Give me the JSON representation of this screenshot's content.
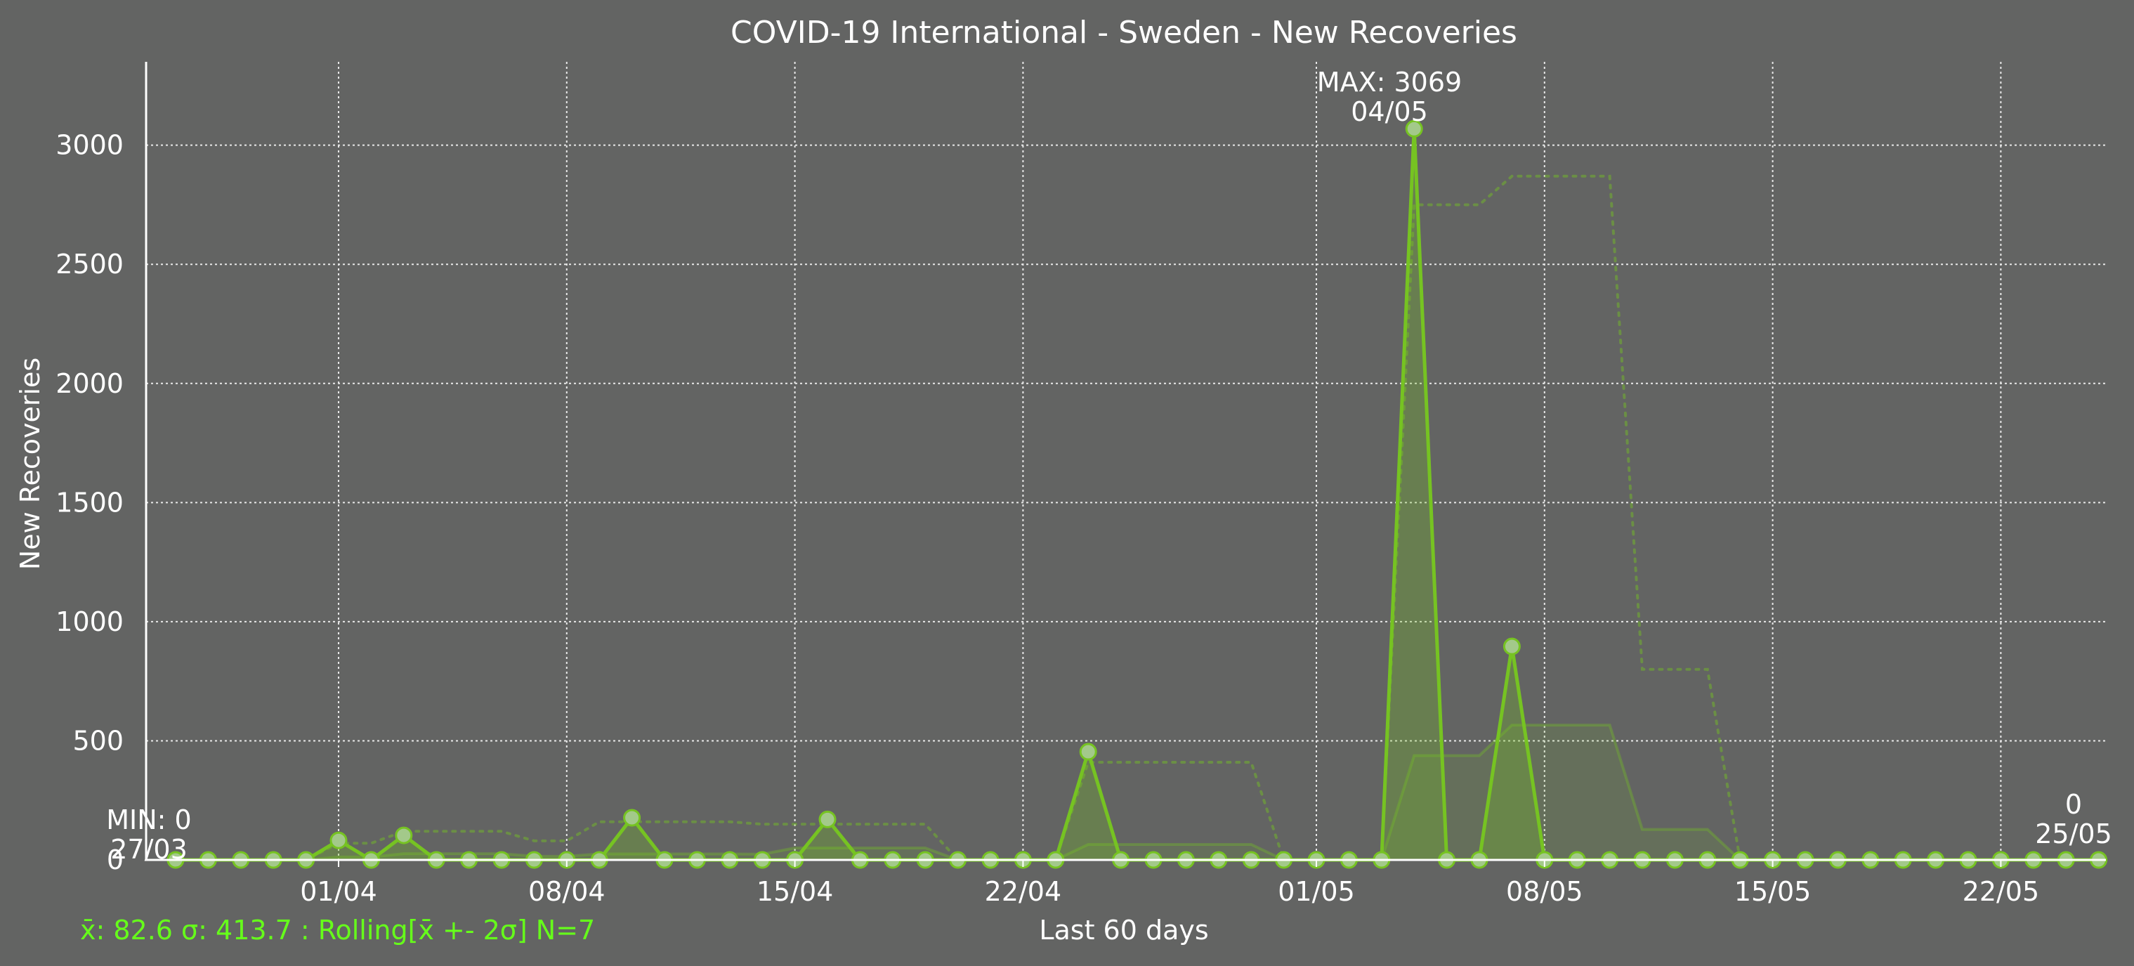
{
  "chart_data": {
    "type": "line",
    "title": "COVID-19 International - Sweden - New Recoveries",
    "xlabel": "Last 60 days",
    "ylabel": "New Recoveries",
    "x": [
      "27/03",
      "28/03",
      "29/03",
      "30/03",
      "31/03",
      "01/04",
      "02/04",
      "03/04",
      "04/04",
      "05/04",
      "06/04",
      "07/04",
      "08/04",
      "09/04",
      "10/04",
      "11/04",
      "12/04",
      "13/04",
      "14/04",
      "15/04",
      "16/04",
      "17/04",
      "18/04",
      "19/04",
      "20/04",
      "21/04",
      "22/04",
      "23/04",
      "24/04",
      "25/04",
      "26/04",
      "27/04",
      "28/04",
      "29/04",
      "30/04",
      "01/05",
      "02/05",
      "03/05",
      "04/05",
      "05/05",
      "06/05",
      "07/05",
      "08/05",
      "09/05",
      "10/05",
      "11/05",
      "12/05",
      "13/05",
      "14/05",
      "15/05",
      "16/05",
      "17/05",
      "18/05",
      "19/05",
      "20/05",
      "21/05",
      "22/05",
      "23/05",
      "24/05",
      "25/05"
    ],
    "xticks": [
      "01/04",
      "08/04",
      "15/04",
      "22/04",
      "01/05",
      "08/05",
      "15/05",
      "22/05"
    ],
    "yticks": [
      0,
      500,
      1000,
      1500,
      2000,
      2500,
      3000
    ],
    "ylim": [
      0,
      3350
    ],
    "grid": true,
    "series": [
      {
        "values": [
          0,
          0,
          0,
          0,
          0,
          82,
          0,
          103,
          0,
          0,
          0,
          0,
          0,
          0,
          177,
          0,
          0,
          0,
          0,
          0,
          170,
          0,
          0,
          0,
          0,
          0,
          0,
          0,
          454,
          0,
          0,
          0,
          0,
          0,
          0,
          0,
          0,
          0,
          3069,
          0,
          0,
          896,
          0,
          0,
          0,
          0,
          0,
          0,
          0,
          0,
          0,
          0,
          0,
          0,
          0,
          0,
          0,
          0,
          0,
          0
        ],
        "color": "#76c322"
      }
    ],
    "rolling_mean": [
      0,
      0,
      0,
      0,
      0,
      12,
      12,
      26,
      26,
      26,
      26,
      15,
      15,
      25,
      25,
      25,
      25,
      25,
      24,
      50,
      50,
      50,
      50,
      50,
      0,
      0,
      0,
      0,
      65,
      65,
      65,
      65,
      65,
      65,
      0,
      0,
      0,
      0,
      438,
      438,
      438,
      566,
      566,
      566,
      566,
      128,
      128,
      128,
      0,
      0,
      0,
      0,
      0,
      0,
      0,
      0,
      0,
      0,
      0,
      0
    ],
    "rolling_upper": [
      0,
      0,
      0,
      0,
      0,
      70,
      70,
      120,
      120,
      120,
      120,
      80,
      80,
      160,
      160,
      160,
      160,
      160,
      150,
      150,
      150,
      150,
      150,
      150,
      0,
      0,
      0,
      0,
      410,
      410,
      410,
      410,
      410,
      410,
      0,
      0,
      0,
      0,
      2750,
      2750,
      2750,
      2870,
      2870,
      2870,
      2870,
      800,
      800,
      800,
      0,
      0,
      0,
      0,
      0,
      0,
      0,
      0,
      0,
      0,
      0,
      0
    ],
    "annotations": {
      "min_label": "MIN: 0",
      "min_date": "27/03",
      "max_label": "MAX: 3069",
      "max_date": "04/05",
      "last_value": "0",
      "last_date": "25/05"
    },
    "stats_text": "x̄: 82.6 σ: 413.7 : Rolling[x̄ +- 2σ] N=7"
  }
}
